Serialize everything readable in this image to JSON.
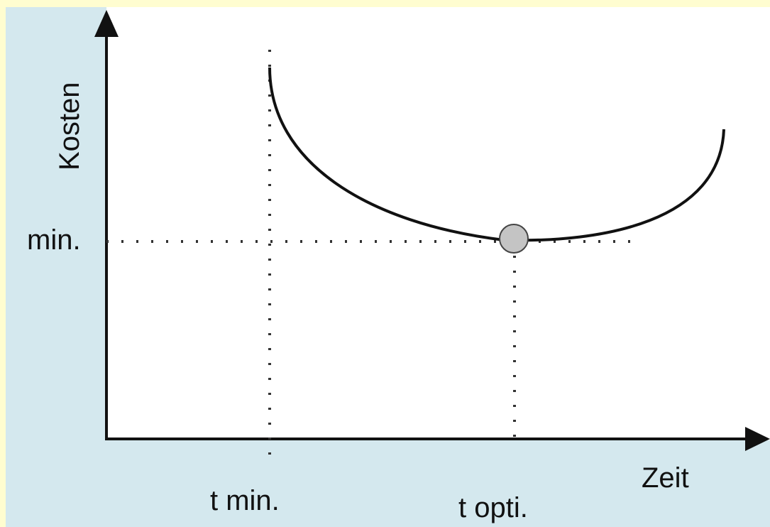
{
  "diagram": {
    "y_axis_label": "Kosten",
    "x_axis_label": "Zeit",
    "y_marker_label": "min.",
    "x_marker_min_label": "t min.",
    "x_marker_opt_label": "t opti.",
    "colors": {
      "panel_background": "#d4e8ee",
      "plot_background": "#ffffff",
      "frame_background": "#fffdd0",
      "curve": "#111111",
      "optimum_point_fill": "#c4c4c4"
    }
  }
}
